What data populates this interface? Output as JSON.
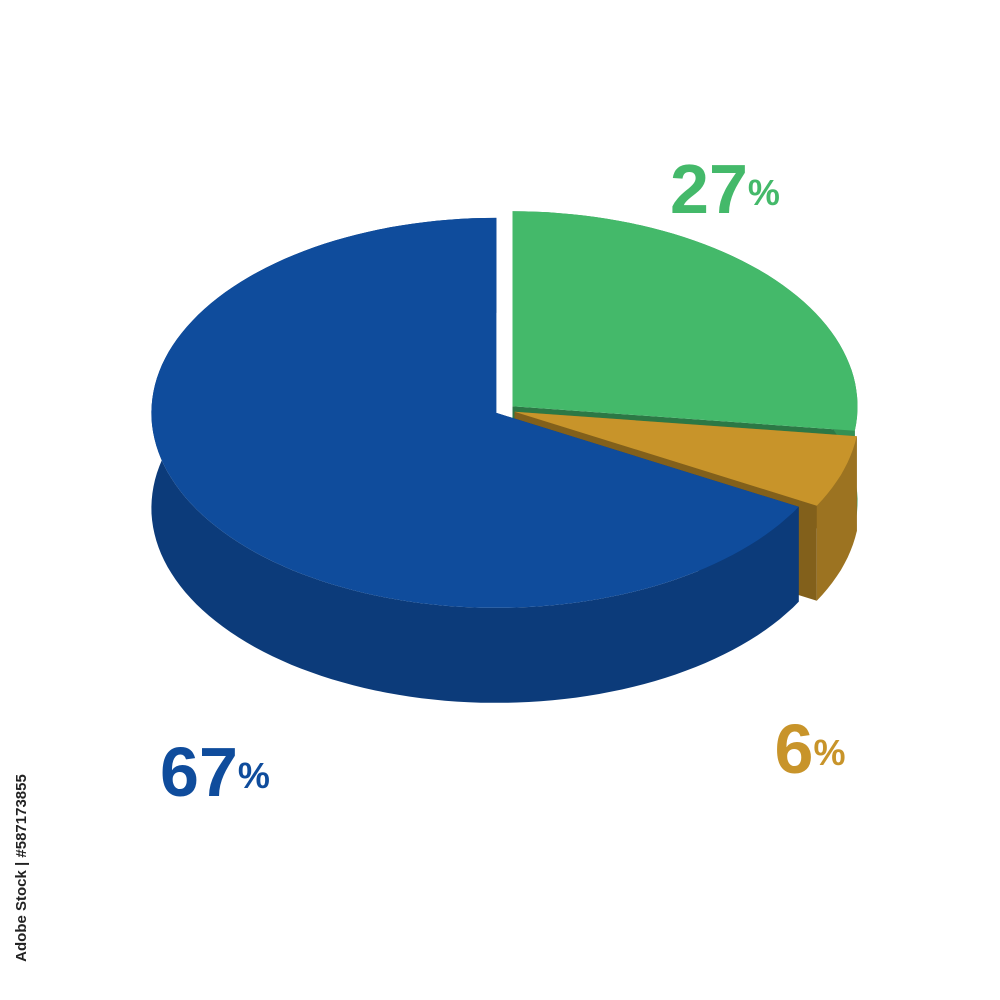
{
  "chart_data": {
    "type": "pie",
    "values": [
      67,
      27,
      6
    ],
    "value_labels": [
      "67%",
      "27%",
      "6%"
    ],
    "colors": [
      "#0f4c9c",
      "#44b96a",
      "#c8942a"
    ]
  },
  "watermark": "Adobe Stock | #587173855"
}
